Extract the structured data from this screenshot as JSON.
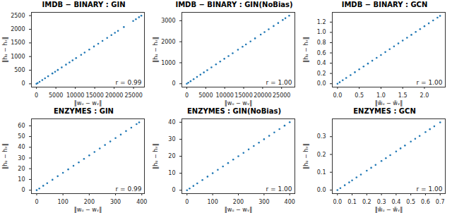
{
  "chart_data": [
    {
      "type": "scatter",
      "title": "IMDB − BINARY : GIN",
      "x_label": "‖wᵤ − wᵥ‖",
      "y_label": "‖hᵤ − hᵥ‖",
      "color": "#1f77b4",
      "annotation": "r = 0.99",
      "grid": false,
      "x": [
        0,
        300,
        800,
        1500,
        2200,
        3000,
        4100,
        4800,
        5500,
        6500,
        7600,
        8500,
        9300,
        10200,
        11500,
        12400,
        13600,
        14800,
        15900,
        17000,
        18200,
        19300,
        20200,
        21000,
        22500,
        24900,
        25600,
        26400,
        27000
      ],
      "values": [
        0,
        28,
        74,
        139,
        204,
        278,
        380,
        444,
        509,
        601,
        703,
        786,
        860,
        944,
        1064,
        1147,
        1258,
        1369,
        1471,
        1573,
        1684,
        1785,
        1869,
        1943,
        2081,
        2303,
        2368,
        2442,
        2498
      ],
      "xlim": [
        -1300,
        27800
      ],
      "ylim": [
        -120,
        2620
      ],
      "xticks": [
        0,
        5000,
        10000,
        15000,
        20000,
        25000
      ],
      "yticks": [
        0,
        500,
        1000,
        1500,
        2000,
        2500
      ]
    },
    {
      "type": "scatter",
      "title": "IMDB − BINARY : GIN(NoBias)",
      "x_label": "‖wᵤ − wᵥ‖",
      "y_label": "‖hᵤ − hᵥ‖",
      "color": "#1f77b4",
      "annotation": "r = 1.00",
      "grid": false,
      "x": [
        0,
        400,
        1000,
        1800,
        2700,
        3600,
        4500,
        5400,
        6500,
        7700,
        8800,
        9900,
        11000,
        12100,
        13500,
        14700,
        15600,
        16800,
        18000,
        19500,
        20500,
        21600,
        22900,
        24100,
        25300,
        26000,
        27000
      ],
      "values": [
        0,
        48,
        120,
        216,
        324,
        432,
        540,
        648,
        780,
        924,
        1056,
        1188,
        1320,
        1452,
        1620,
        1764,
        1872,
        2016,
        2160,
        2340,
        2460,
        2592,
        2748,
        2892,
        3036,
        3120,
        3240
      ],
      "xlim": [
        -1300,
        28500
      ],
      "ylim": [
        -160,
        3400
      ],
      "xticks": [
        0,
        5000,
        10000,
        15000,
        20000,
        25000
      ],
      "yticks": [
        0,
        1000,
        2000,
        3000
      ]
    },
    {
      "type": "scatter",
      "title": "IMDB − BINARY : GCN",
      "x_label": "‖w̃ᵤ − w̃ᵥ‖",
      "y_label": "‖hᵤ − hᵥ‖",
      "color": "#1f77b4",
      "annotation": "r = 1.00",
      "grid": false,
      "x": [
        0,
        0.05,
        0.12,
        0.2,
        0.3,
        0.4,
        0.5,
        0.6,
        0.7,
        0.8,
        0.9,
        1.0,
        1.1,
        1.2,
        1.3,
        1.4,
        1.5,
        1.6,
        1.7,
        1.8,
        1.9,
        2.0,
        2.1,
        2.2,
        2.3,
        2.36
      ],
      "values": [
        0,
        0.028,
        0.067,
        0.112,
        0.168,
        0.224,
        0.28,
        0.336,
        0.392,
        0.448,
        0.504,
        0.56,
        0.616,
        0.672,
        0.728,
        0.784,
        0.84,
        0.896,
        0.952,
        1.008,
        1.064,
        1.12,
        1.176,
        1.232,
        1.288,
        1.322
      ],
      "xlim": [
        -0.12,
        2.48
      ],
      "ylim": [
        -0.066,
        1.39
      ],
      "xticks": [
        {
          "value": 0,
          "label": "0.0"
        },
        0.5,
        {
          "value": 1,
          "label": "1.0"
        },
        1.5,
        {
          "value": 2,
          "label": "2.0"
        }
      ],
      "yticks": [
        {
          "value": 0,
          "label": "0.0"
        },
        0.2,
        0.4,
        0.6,
        0.8,
        {
          "value": 1,
          "label": "1.0"
        },
        1.2
      ]
    },
    {
      "type": "scatter",
      "title": "ENZYMES : GIN",
      "x_label": "‖wᵤ − wᵥ‖",
      "y_label": "‖hᵤ − hᵥ‖",
      "color": "#1f77b4",
      "annotation": "r = 0.99",
      "grid": false,
      "x": [
        0,
        10,
        25,
        40,
        60,
        80,
        100,
        120,
        140,
        160,
        180,
        200,
        220,
        240,
        260,
        280,
        300,
        320,
        340,
        360,
        380,
        390
      ],
      "values": [
        0,
        1.6,
        4.1,
        6.5,
        9.7,
        13,
        16.2,
        19.4,
        22.7,
        25.9,
        29.2,
        32.4,
        35.6,
        38.9,
        42.1,
        45.4,
        48.6,
        51.8,
        55.1,
        58.3,
        61.6,
        63.2
      ],
      "xlim": [
        -20,
        410
      ],
      "ylim": [
        -3.2,
        66.5
      ],
      "xticks": [
        0,
        100,
        200,
        300,
        400
      ],
      "yticks": [
        0,
        10,
        20,
        30,
        40,
        50,
        60
      ]
    },
    {
      "type": "scatter",
      "title": "ENZYMES : GIN(NoBias)",
      "x_label": "‖wᵤ − wᵥ‖",
      "y_label": "‖hᵤ − hᵥ‖",
      "color": "#1f77b4",
      "annotation": "r = 1.00",
      "grid": false,
      "x": [
        0,
        10,
        25,
        40,
        60,
        80,
        100,
        120,
        140,
        160,
        180,
        200,
        220,
        240,
        260,
        280,
        300,
        320,
        340,
        360,
        380,
        400
      ],
      "values": [
        0,
        1,
        2.5,
        4,
        6,
        8,
        10,
        12,
        14,
        16,
        18,
        20,
        22,
        24,
        26,
        28,
        30,
        32,
        34,
        36,
        38,
        40
      ],
      "xlim": [
        -20,
        420
      ],
      "ylim": [
        -2,
        42
      ],
      "xticks": [
        0,
        100,
        200,
        300,
        400
      ],
      "yticks": [
        0,
        10,
        20,
        30,
        40
      ]
    },
    {
      "type": "scatter",
      "title": "ENZYMES : GCN",
      "x_label": "‖w̃ᵤ − w̃ᵥ‖",
      "y_label": "‖hᵤ − hᵥ‖",
      "color": "#1f77b4",
      "annotation": "r = 1.00",
      "grid": false,
      "x": [
        0,
        0.02,
        0.05,
        0.08,
        0.1,
        0.13,
        0.16,
        0.2,
        0.23,
        0.26,
        0.3,
        0.33,
        0.36,
        0.4,
        0.43,
        0.46,
        0.5,
        0.53,
        0.56,
        0.6,
        0.63,
        0.66,
        0.7
      ],
      "values": [
        0,
        0.011,
        0.027,
        0.043,
        0.054,
        0.071,
        0.087,
        0.109,
        0.125,
        0.141,
        0.163,
        0.179,
        0.196,
        0.217,
        0.234,
        0.25,
        0.272,
        0.288,
        0.304,
        0.326,
        0.342,
        0.358,
        0.38
      ],
      "xlim": [
        -0.035,
        0.735
      ],
      "ylim": [
        -0.02,
        0.4
      ],
      "xticks": [
        {
          "value": 0,
          "label": "0.0"
        },
        0.1,
        0.2,
        0.3,
        0.4,
        0.5,
        0.6,
        0.7
      ],
      "yticks": [
        {
          "value": 0,
          "label": "0.0"
        },
        0.1,
        0.2,
        0.3
      ]
    }
  ]
}
